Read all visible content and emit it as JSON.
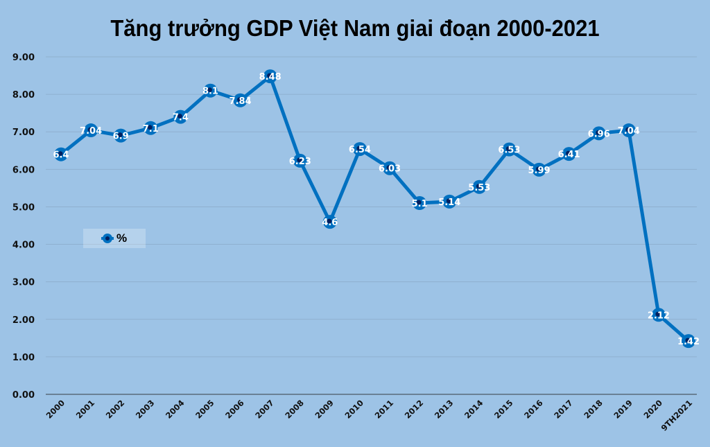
{
  "chart_data": {
    "type": "line",
    "title": "Tăng trưởng GDP Việt Nam giai đoạn 2000-2021",
    "xlabel": "",
    "ylabel": "",
    "categories": [
      "2000",
      "2001",
      "2002",
      "2003",
      "2004",
      "2005",
      "2006",
      "2007",
      "2008",
      "2009",
      "2010",
      "2011",
      "2012",
      "2013",
      "2014",
      "2015",
      "2016",
      "2017",
      "2018",
      "2019",
      "2020",
      "9TH2021"
    ],
    "series": [
      {
        "name": "%",
        "values": [
          6.4,
          7.04,
          6.9,
          7.1,
          7.4,
          8.1,
          7.84,
          8.48,
          6.23,
          4.6,
          6.54,
          6.03,
          5.1,
          5.14,
          5.53,
          6.53,
          5.99,
          6.41,
          6.96,
          7.04,
          2.12,
          1.42
        ],
        "labels": [
          "6.4",
          "7.04",
          "6.9",
          "7.1",
          "7.4",
          "8.1",
          "7.84",
          "8.48",
          "6.23",
          "4.6",
          "6.54",
          "6.03",
          "5.1",
          "5.14",
          "5.53",
          "6.53",
          "5.99",
          "6.41",
          "6.96",
          "7.04",
          "2.12",
          "1.42"
        ],
        "color": "#0070c0",
        "marker_center_color": "#002060"
      }
    ],
    "ylim": [
      0,
      9
    ],
    "yticks": [
      "0.00",
      "1.00",
      "2.00",
      "3.00",
      "4.00",
      "5.00",
      "6.00",
      "7.00",
      "8.00",
      "9.00"
    ],
    "grid": true,
    "legend_position": "inside-left",
    "background_color": "#9dc3e6"
  },
  "legend": {
    "label": "%"
  }
}
